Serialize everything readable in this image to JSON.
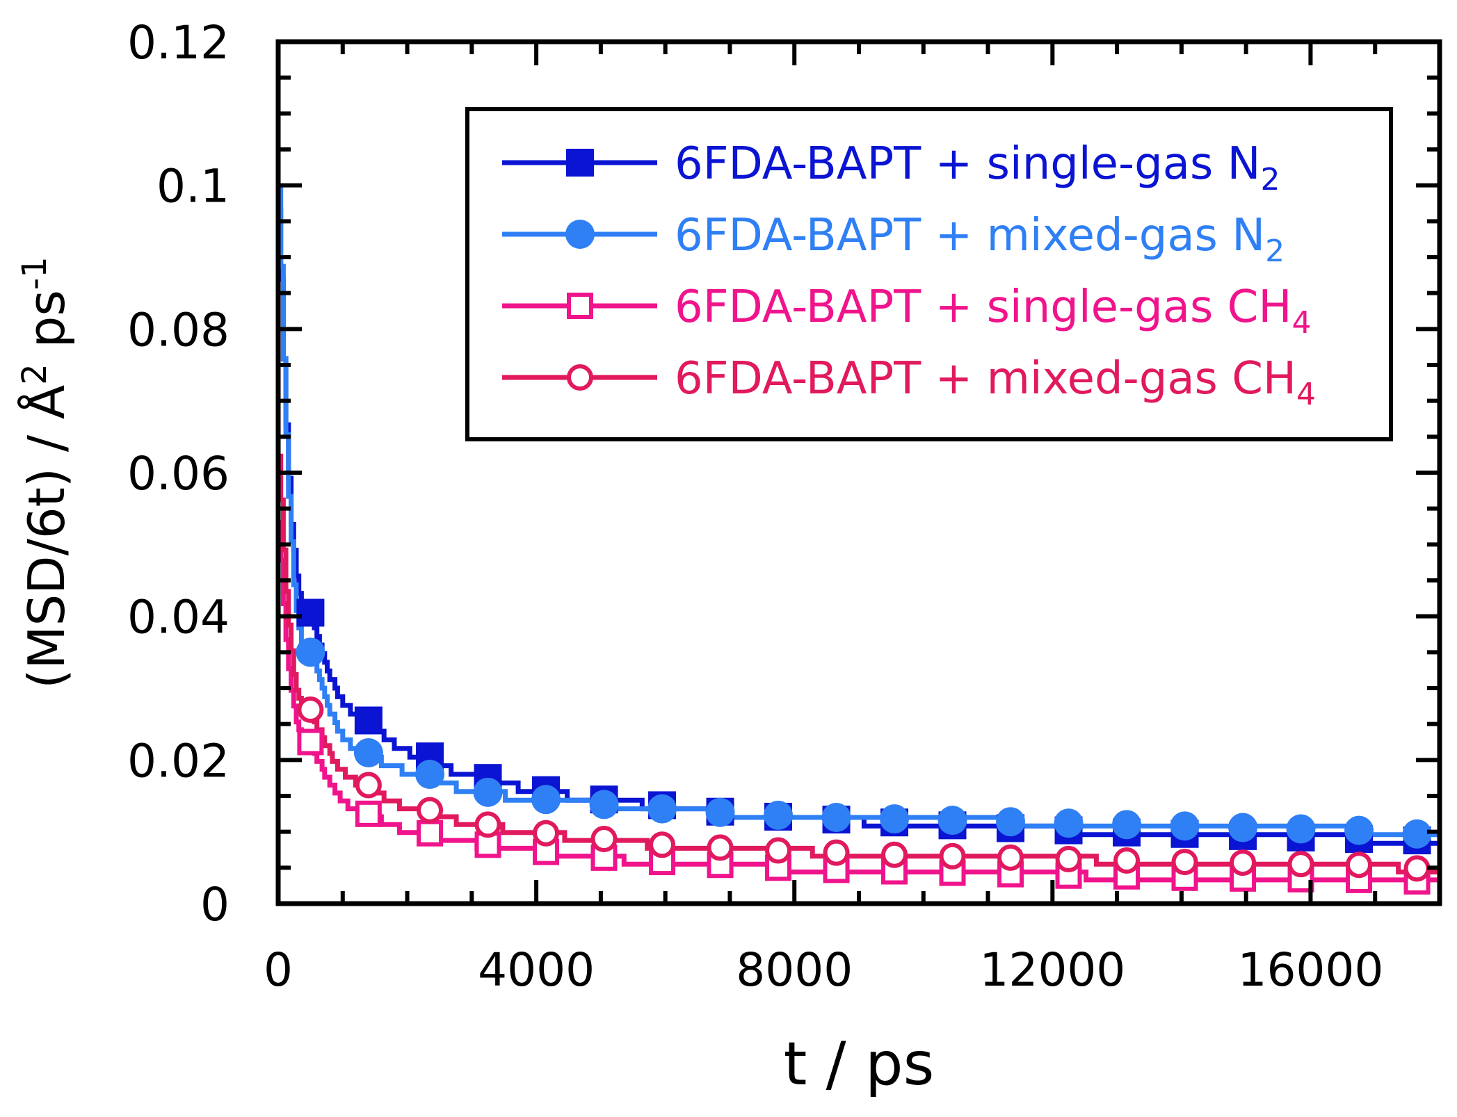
{
  "chart_data": {
    "type": "line",
    "title": "",
    "xlabel": "t / ps",
    "ylabel_parts": [
      "(MSD/6t) / Å",
      "2",
      " ps",
      "-1"
    ],
    "xlim": [
      0,
      18000
    ],
    "ylim": [
      0,
      0.12
    ],
    "xticks": [
      0,
      4000,
      8000,
      12000,
      16000
    ],
    "xtick_labels": [
      "0",
      "4000",
      "8000",
      "12000",
      "16000"
    ],
    "yticks": [
      0,
      0.02,
      0.04,
      0.06,
      0.08,
      0.1,
      0.12
    ],
    "ytick_labels": [
      "0",
      "0.02",
      "0.04",
      "0.06",
      "0.08",
      "0.1",
      "0.12"
    ],
    "grid": false,
    "legend_position": "top-right",
    "series": [
      {
        "name": "6FDA-BAPT + single-gas N",
        "name_sub": "2",
        "color": "#0a14d2",
        "marker": "filled-square",
        "curve": {
          "a": 0.0925,
          "b": 0.0076,
          "c": 0.0105
        },
        "x": [
          500,
          1400,
          2350,
          3250,
          4150,
          5050,
          5950,
          6850,
          7750,
          8650,
          9550,
          10450,
          11350,
          12250,
          13150,
          14050,
          14950,
          15850,
          16750,
          17650
        ],
        "values": [
          0.0405,
          0.0255,
          0.0205,
          0.0175,
          0.0158,
          0.0145,
          0.0137,
          0.0128,
          0.0121,
          0.0117,
          0.0113,
          0.0109,
          0.0105,
          0.0102,
          0.0099,
          0.0097,
          0.0094,
          0.0092,
          0.009,
          0.0088
        ]
      },
      {
        "name": "6FDA-BAPT + mixed-gas N",
        "name_sub": "2",
        "color": "#2f7ff5",
        "marker": "filled-circle",
        "curve": {
          "a": 0.0945,
          "b": 0.0095,
          "c": 0.0054
        },
        "x": [
          500,
          1400,
          2350,
          3250,
          4150,
          5050,
          5950,
          6850,
          7750,
          8650,
          9550,
          10450,
          11350,
          12250,
          13150,
          14050,
          14950,
          15850,
          16750,
          17650
        ],
        "values": [
          0.035,
          0.021,
          0.018,
          0.0155,
          0.0145,
          0.0138,
          0.0132,
          0.0127,
          0.0123,
          0.012,
          0.0118,
          0.0116,
          0.0114,
          0.0112,
          0.011,
          0.0108,
          0.0106,
          0.0104,
          0.0102,
          0.0097
        ]
      },
      {
        "name": "6FDA-BAPT + single-gas CH",
        "name_sub": "4",
        "color": "#f0148c",
        "marker": "open-square",
        "curve": {
          "a": 0.0515,
          "b": 0.0035,
          "c": 0.007
        },
        "x": [
          500,
          1400,
          2350,
          3250,
          4150,
          5050,
          5950,
          6850,
          7750,
          8650,
          9550,
          10450,
          11350,
          12250,
          13150,
          14050,
          14950,
          15850,
          16750,
          17650
        ],
        "values": [
          0.0225,
          0.0125,
          0.0098,
          0.0082,
          0.0072,
          0.0064,
          0.0058,
          0.0054,
          0.005,
          0.0047,
          0.0045,
          0.0043,
          0.0041,
          0.0039,
          0.0038,
          0.0036,
          0.0035,
          0.0034,
          0.0033,
          0.0031
        ]
      },
      {
        "name": "6FDA-BAPT + mixed-gas CH",
        "name_sub": "4",
        "color": "#e1195f",
        "marker": "open-circle",
        "curve": {
          "a": 0.0592,
          "b": 0.0053,
          "c": 0.0092
        },
        "x": [
          500,
          1400,
          2350,
          3250,
          4150,
          5050,
          5950,
          6850,
          7750,
          8650,
          9550,
          10450,
          11350,
          12250,
          13150,
          14050,
          14950,
          15850,
          16750,
          17650
        ],
        "values": [
          0.027,
          0.0165,
          0.013,
          0.011,
          0.0098,
          0.009,
          0.0082,
          0.0078,
          0.0074,
          0.0071,
          0.0068,
          0.0066,
          0.0064,
          0.0062,
          0.006,
          0.0058,
          0.0057,
          0.0055,
          0.0054,
          0.0049
        ]
      }
    ]
  }
}
